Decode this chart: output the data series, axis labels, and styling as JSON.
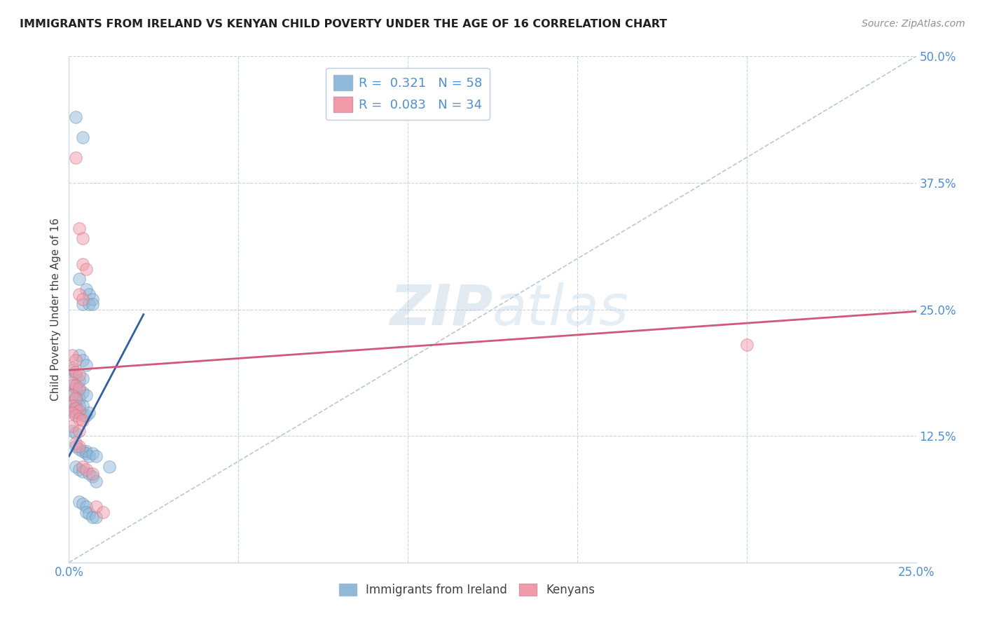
{
  "title": "IMMIGRANTS FROM IRELAND VS KENYAN CHILD POVERTY UNDER THE AGE OF 16 CORRELATION CHART",
  "source": "Source: ZipAtlas.com",
  "ylabel": "Child Poverty Under the Age of 16",
  "xlim": [
    0.0,
    0.25
  ],
  "ylim": [
    0.0,
    0.5
  ],
  "xticks": [
    0.0,
    0.05,
    0.1,
    0.15,
    0.2,
    0.25
  ],
  "yticks": [
    0.0,
    0.125,
    0.25,
    0.375,
    0.5
  ],
  "xtick_labels": [
    "0.0%",
    "",
    "",
    "",
    "",
    "25.0%"
  ],
  "ytick_labels_right": [
    "",
    "12.5%",
    "25.0%",
    "37.5%",
    "50.0%"
  ],
  "legend_label1": "Immigrants from Ireland",
  "legend_label2": "Kenyans",
  "blue_color": "#90b8d8",
  "pink_color": "#f09aaa",
  "blue_edge_color": "#6090b8",
  "pink_edge_color": "#d07080",
  "blue_line_color": "#3060a0",
  "pink_line_color": "#d05878",
  "diag_line_color": "#b8c8d8",
  "tick_color": "#5090d0",
  "watermark_color": "#c8d8e8",
  "blue_points": [
    [
      0.002,
      0.44
    ],
    [
      0.004,
      0.42
    ],
    [
      0.003,
      0.28
    ],
    [
      0.005,
      0.27
    ],
    [
      0.004,
      0.255
    ],
    [
      0.006,
      0.265
    ],
    [
      0.006,
      0.255
    ],
    [
      0.007,
      0.26
    ],
    [
      0.007,
      0.255
    ],
    [
      0.003,
      0.205
    ],
    [
      0.004,
      0.2
    ],
    [
      0.005,
      0.195
    ],
    [
      0.001,
      0.19
    ],
    [
      0.002,
      0.185
    ],
    [
      0.003,
      0.18
    ],
    [
      0.004,
      0.182
    ],
    [
      0.001,
      0.175
    ],
    [
      0.002,
      0.172
    ],
    [
      0.003,
      0.17
    ],
    [
      0.004,
      0.168
    ],
    [
      0.001,
      0.165
    ],
    [
      0.002,
      0.163
    ],
    [
      0.003,
      0.162
    ],
    [
      0.005,
      0.165
    ],
    [
      0.001,
      0.158
    ],
    [
      0.002,
      0.155
    ],
    [
      0.003,
      0.155
    ],
    [
      0.004,
      0.155
    ],
    [
      0.001,
      0.15
    ],
    [
      0.002,
      0.148
    ],
    [
      0.003,
      0.148
    ],
    [
      0.004,
      0.145
    ],
    [
      0.005,
      0.145
    ],
    [
      0.006,
      0.148
    ],
    [
      0.001,
      0.13
    ],
    [
      0.002,
      0.128
    ],
    [
      0.002,
      0.115
    ],
    [
      0.003,
      0.112
    ],
    [
      0.004,
      0.11
    ],
    [
      0.005,
      0.11
    ],
    [
      0.005,
      0.108
    ],
    [
      0.006,
      0.105
    ],
    [
      0.007,
      0.108
    ],
    [
      0.008,
      0.105
    ],
    [
      0.002,
      0.095
    ],
    [
      0.003,
      0.092
    ],
    [
      0.004,
      0.09
    ],
    [
      0.006,
      0.088
    ],
    [
      0.007,
      0.085
    ],
    [
      0.008,
      0.08
    ],
    [
      0.003,
      0.06
    ],
    [
      0.004,
      0.058
    ],
    [
      0.005,
      0.055
    ],
    [
      0.005,
      0.05
    ],
    [
      0.006,
      0.048
    ],
    [
      0.007,
      0.045
    ],
    [
      0.008,
      0.045
    ],
    [
      0.012,
      0.095
    ]
  ],
  "pink_points": [
    [
      0.002,
      0.4
    ],
    [
      0.003,
      0.33
    ],
    [
      0.004,
      0.32
    ],
    [
      0.004,
      0.295
    ],
    [
      0.005,
      0.29
    ],
    [
      0.003,
      0.265
    ],
    [
      0.004,
      0.26
    ],
    [
      0.001,
      0.205
    ],
    [
      0.002,
      0.2
    ],
    [
      0.001,
      0.192
    ],
    [
      0.002,
      0.188
    ],
    [
      0.003,
      0.185
    ],
    [
      0.001,
      0.178
    ],
    [
      0.002,
      0.175
    ],
    [
      0.003,
      0.172
    ],
    [
      0.001,
      0.165
    ],
    [
      0.002,
      0.162
    ],
    [
      0.001,
      0.155
    ],
    [
      0.002,
      0.152
    ],
    [
      0.003,
      0.15
    ],
    [
      0.001,
      0.148
    ],
    [
      0.002,
      0.145
    ],
    [
      0.003,
      0.142
    ],
    [
      0.004,
      0.14
    ],
    [
      0.001,
      0.135
    ],
    [
      0.003,
      0.13
    ],
    [
      0.002,
      0.118
    ],
    [
      0.003,
      0.115
    ],
    [
      0.004,
      0.095
    ],
    [
      0.005,
      0.092
    ],
    [
      0.007,
      0.088
    ],
    [
      0.008,
      0.055
    ],
    [
      0.01,
      0.05
    ],
    [
      0.2,
      0.215
    ]
  ],
  "blue_line_x": [
    0.0,
    0.022
  ],
  "blue_line_y_start": 0.105,
  "blue_line_y_end": 0.245,
  "pink_line_x": [
    0.0,
    0.25
  ],
  "pink_line_y_start": 0.19,
  "pink_line_y_end": 0.248
}
